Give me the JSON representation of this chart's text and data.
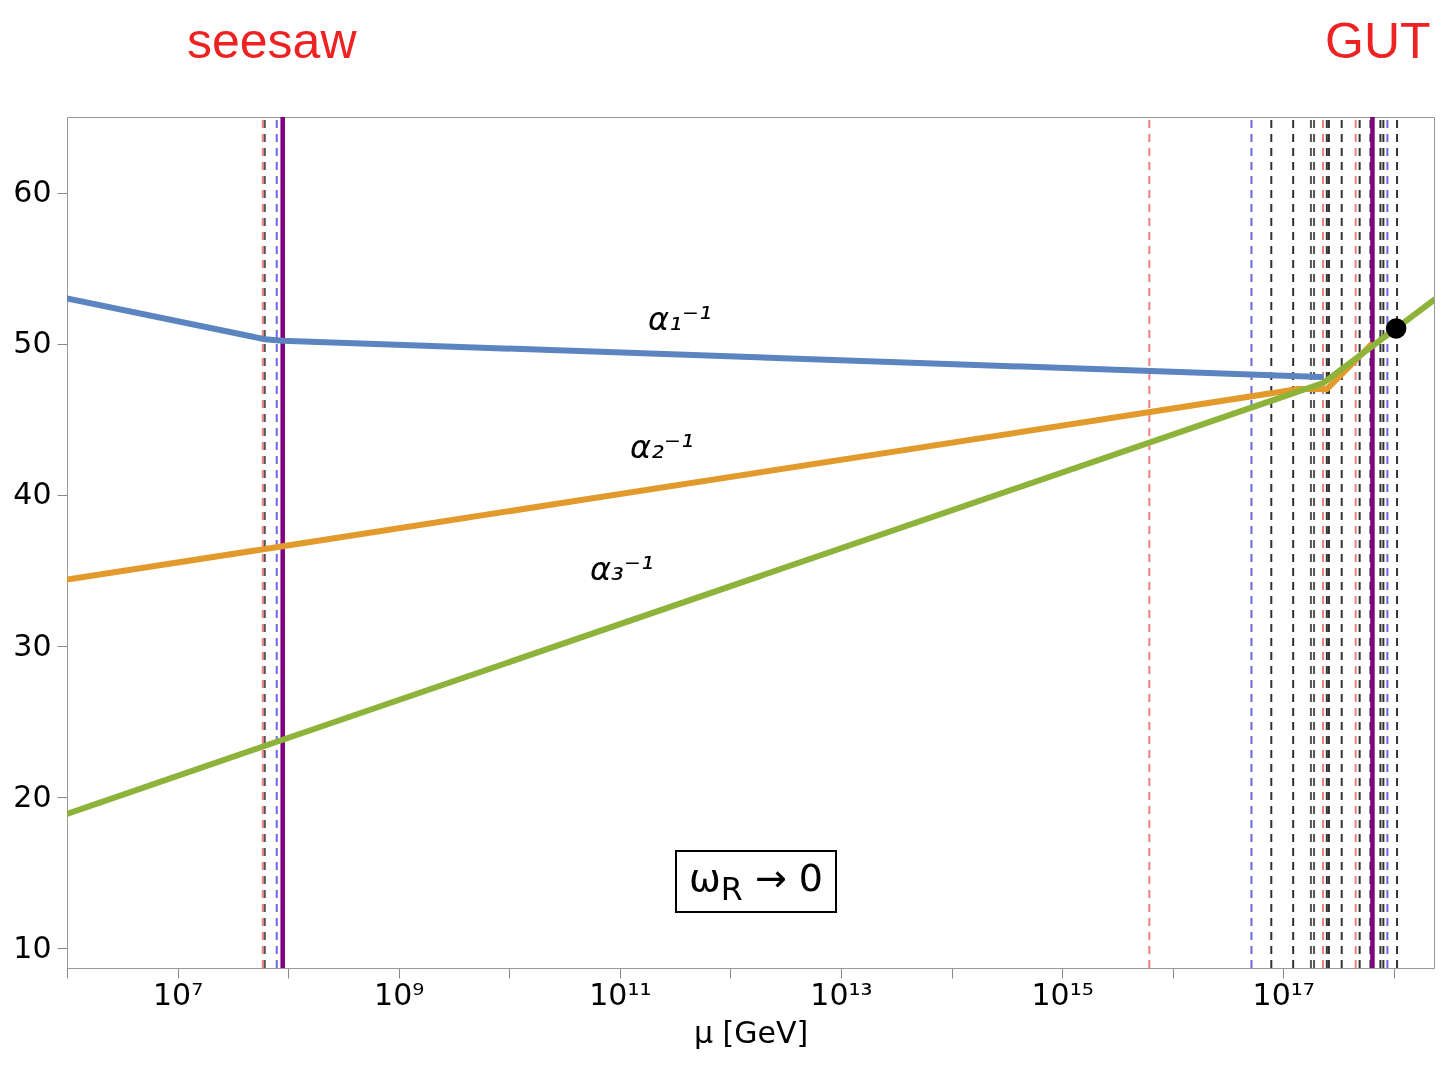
{
  "chart_data": {
    "type": "line",
    "xlabel": "μ [GeV]",
    "log": "x",
    "xlim": [
      1000000.0,
      2.31e+18
    ],
    "xticks": [
      {
        "value": 1000000.0,
        "label": null
      },
      {
        "value": 10000000.0,
        "label": "10⁷"
      },
      {
        "value": 100000000.0,
        "label": null
      },
      {
        "value": 1000000000.0,
        "label": "10⁹"
      },
      {
        "value": 10000000000.0,
        "label": null
      },
      {
        "value": 100000000000.0,
        "label": "10¹¹"
      },
      {
        "value": 1000000000000.0,
        "label": null
      },
      {
        "value": 10000000000000.0,
        "label": "10¹³"
      },
      {
        "value": 100000000000000.0,
        "label": null
      },
      {
        "value": 1000000000000000.0,
        "label": "10¹⁵"
      },
      {
        "value": 1e+16,
        "label": null
      },
      {
        "value": 1e+17,
        "label": "10¹⁷"
      },
      {
        "value": 1e+18,
        "label": null
      }
    ],
    "ylim": [
      8.7,
      65
    ],
    "yticks": [
      10,
      20,
      30,
      40,
      50,
      60
    ],
    "series": [
      {
        "color": "#5b84c0",
        "x": [
          1000000.0,
          61500000.0,
          89300000.0,
          2.2e+17
        ],
        "values": [
          53,
          50.3,
          50.2,
          47.8
        ]
      },
      {
        "color": "#e39a2c",
        "x": [
          1000000.0,
          89300000.0,
          1.36e+17,
          2.48e+17,
          6.15e+17
        ],
        "values": [
          34.4,
          36.6,
          47.0,
          47.0,
          49.9
        ]
      },
      {
        "color": "#8db33a",
        "x": [
          1000000.0,
          89300000.0,
          2.29e+17,
          2.31e+18
        ],
        "values": [
          18.9,
          23.8,
          47.4,
          52.9
        ]
      },
      {
        "type": "scatter",
        "color": "#000000",
        "x": [
          1.05e+18
        ],
        "values": [
          51.0
        ]
      }
    ],
    "ref_lines": [
      {
        "axis": "x",
        "value": 59000000.0,
        "color": "#f08080",
        "line_style": "dashed"
      },
      {
        "axis": "x",
        "value": 61500000.0,
        "color": "#555555",
        "line_style": "dashed"
      },
      {
        "axis": "x",
        "value": 78900000.0,
        "color": "#6a6ae0",
        "line_style": "dashed"
      },
      {
        "axis": "x",
        "value": 89300000.0,
        "color": "#800080",
        "line_style": "solid"
      },
      {
        "axis": "x",
        "value": 6150000000000000.0,
        "color": "#f08080",
        "line_style": "dashed"
      },
      {
        "axis": "x",
        "value": 5.16e+16,
        "color": "#6a6ae0",
        "line_style": "dashed"
      },
      {
        "axis": "x",
        "value": 7.8e+16,
        "color": "#333333",
        "line_style": "dashed"
      },
      {
        "axis": "x",
        "value": 1.23e+17,
        "color": "#333333",
        "line_style": "dashed"
      },
      {
        "axis": "x",
        "value": 1.78e+17,
        "color": "#555555",
        "line_style": "dashed"
      },
      {
        "axis": "x",
        "value": 1.9e+17,
        "color": "#555555",
        "line_style": "dashed"
      },
      {
        "axis": "x",
        "value": 2.29e+17,
        "color": "#f08080",
        "line_style": "dashed"
      },
      {
        "axis": "x",
        "value": 2.48e+17,
        "color": "#333333",
        "line_style": "dashed"
      },
      {
        "axis": "x",
        "value": 2.59e+17,
        "color": "#333333",
        "line_style": "dashed"
      },
      {
        "axis": "x",
        "value": 3.38e+17,
        "color": "#333333",
        "line_style": "dashed"
      },
      {
        "axis": "x",
        "value": 4.52e+17,
        "color": "#f08080",
        "line_style": "dashed"
      },
      {
        "axis": "x",
        "value": 4.91e+17,
        "color": "#333333",
        "line_style": "dashed"
      },
      {
        "axis": "x",
        "value": 6.15e+17,
        "color": "#333333",
        "line_style": "dashed"
      },
      {
        "axis": "x",
        "value": 6.41e+17,
        "color": "#800080",
        "line_style": "solid"
      },
      {
        "axis": "x",
        "value": 7.57e+17,
        "color": "#333333",
        "line_style": "dashed"
      },
      {
        "axis": "x",
        "value": 8.05e+17,
        "color": "#333333",
        "line_style": "dashed"
      },
      {
        "axis": "x",
        "value": 8.75e+17,
        "color": "#6a6ae0",
        "line_style": "dashed"
      },
      {
        "axis": "x",
        "value": 1.07e+18,
        "color": "#333333",
        "line_style": "dashed"
      }
    ],
    "annotations": [
      "seesaw",
      "GUT",
      "α₁⁻¹",
      "α₂⁻¹",
      "α₃⁻¹",
      "ω$_{R}$ → 0"
    ]
  }
}
